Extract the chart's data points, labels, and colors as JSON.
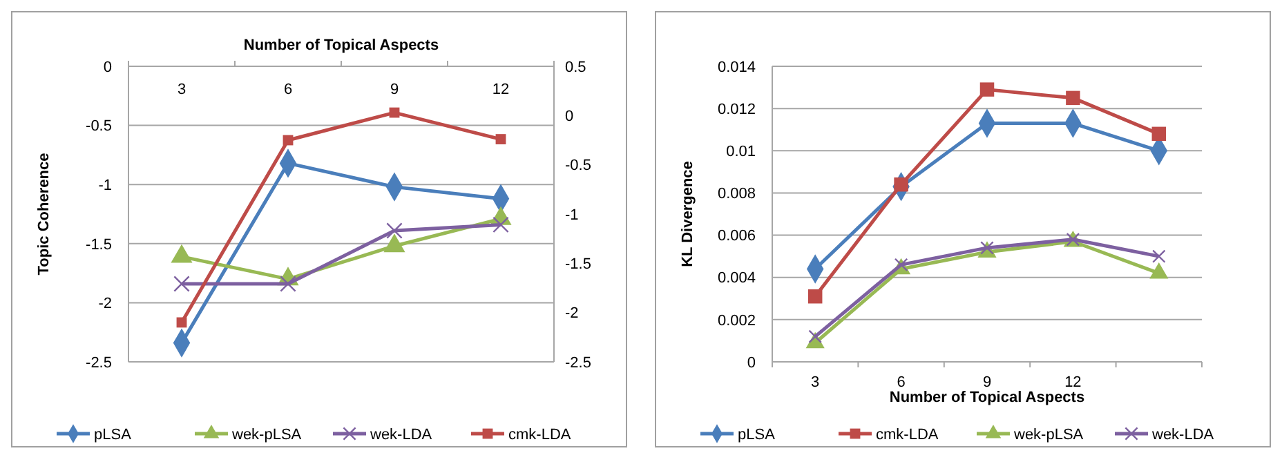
{
  "chart_data": [
    {
      "type": "line",
      "x2label": "Number of Topical Aspects",
      "ylabel": "Topic Coherence",
      "categories": [
        "3",
        "6",
        "9",
        "12"
      ],
      "ylim": [
        -2.5,
        0
      ],
      "yticks": [
        0,
        -0.5,
        -1,
        -1.5,
        -2,
        -2.5
      ],
      "y2lim": [
        -2.5,
        0.5
      ],
      "y2ticks": [
        0.5,
        0,
        -0.5,
        -1,
        -1.5,
        -2,
        -2.5
      ],
      "grid": "y",
      "legend": "bottom",
      "series": [
        {
          "name": "pLSA",
          "color": "#4a7ebb",
          "marker": "diamond",
          "values": [
            -2.34,
            -0.82,
            -1.02,
            -1.12
          ]
        },
        {
          "name": "wek-pLSA",
          "color": "#98b954",
          "marker": "triangle",
          "values": [
            -1.61,
            -1.8,
            -1.52,
            -1.29
          ]
        },
        {
          "name": "wek-LDA",
          "color": "#7d60a0",
          "marker": "cross",
          "values": [
            -1.84,
            -1.84,
            -1.39,
            -1.34
          ]
        },
        {
          "name": "cmk-LDA",
          "color": "#be4b48",
          "marker": "square",
          "axis": "y2",
          "values": [
            -2.1,
            -0.25,
            0.03,
            -0.24
          ]
        }
      ]
    },
    {
      "type": "line",
      "xlabel": "Number of Topical Aspects",
      "ylabel": "KL Divergence",
      "categories": [
        "3",
        "6",
        "9",
        "12",
        null
      ],
      "ylim": [
        0,
        0.014
      ],
      "yticks": [
        0,
        0.002,
        0.004,
        0.006,
        0.008,
        0.01,
        0.012,
        0.014
      ],
      "grid": "y",
      "legend": "bottom",
      "series": [
        {
          "name": "pLSA",
          "color": "#4a7ebb",
          "marker": "diamond",
          "values": [
            0.0044,
            0.0083,
            0.0113,
            0.0113,
            0.01
          ]
        },
        {
          "name": "cmk-LDA",
          "color": "#be4b48",
          "marker": "square",
          "values": [
            0.0031,
            0.0084,
            0.0129,
            0.0125,
            0.0108
          ]
        },
        {
          "name": "wek-pLSA",
          "color": "#98b954",
          "marker": "triangle",
          "values": [
            0.0009,
            0.0044,
            0.0052,
            0.0057,
            0.0042
          ]
        },
        {
          "name": "wek-LDA",
          "color": "#7d60a0",
          "marker": "cross",
          "values": [
            0.0012,
            0.0046,
            0.0054,
            0.0058,
            0.005
          ]
        }
      ]
    }
  ]
}
